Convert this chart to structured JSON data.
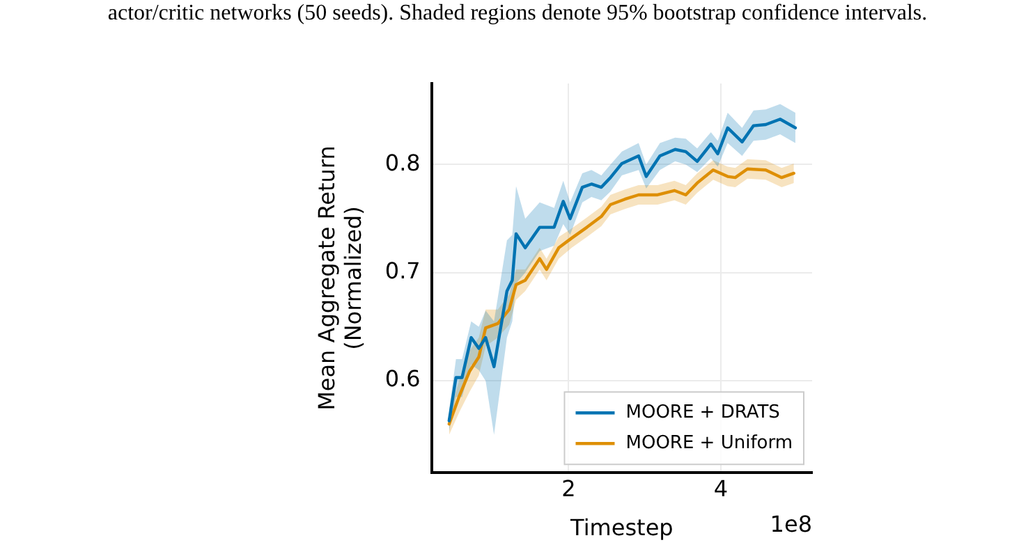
{
  "chart_data": {
    "type": "line",
    "xlabel": "Timestep",
    "ylabel": "Mean Aggregate Return\n(Normalized)",
    "annotations": [
      "actor/critic networks (50 seeds). Shaded regions denote 95% bootstrap confidence intervals.",
      "1e8"
    ],
    "xlim": [
      0.2,
      5.2
    ],
    "ylim": [
      0.515,
      0.875
    ],
    "xticks": [
      2,
      4
    ],
    "yticks": [
      0.6,
      0.7,
      0.8
    ],
    "grid": true,
    "legend": "bottom right",
    "marker": "none",
    "line_style": "solid",
    "series": [
      {
        "name": "MOORE + DRATS",
        "color": "#0173b2",
        "x": [
          0.43,
          0.52,
          0.6,
          0.72,
          0.82,
          0.91,
          1.02,
          1.19,
          1.26,
          1.31,
          1.43,
          1.62,
          1.81,
          1.93,
          2.02,
          2.18,
          2.3,
          2.43,
          2.55,
          2.7,
          2.92,
          3.02,
          3.2,
          3.4,
          3.54,
          3.69,
          3.87,
          3.96,
          4.09,
          4.28,
          4.43,
          4.59,
          4.78,
          4.98
        ],
        "values": [
          0.563,
          0.603,
          0.603,
          0.64,
          0.63,
          0.64,
          0.613,
          0.683,
          0.693,
          0.736,
          0.723,
          0.742,
          0.742,
          0.766,
          0.75,
          0.779,
          0.782,
          0.779,
          0.788,
          0.801,
          0.808,
          0.789,
          0.808,
          0.814,
          0.812,
          0.803,
          0.819,
          0.81,
          0.834,
          0.821,
          0.836,
          0.837,
          0.842,
          0.834
        ],
        "lower": [
          0.553,
          0.585,
          0.585,
          0.615,
          0.61,
          0.6,
          0.55,
          0.64,
          0.655,
          0.69,
          0.7,
          0.72,
          0.725,
          0.745,
          0.735,
          0.765,
          0.77,
          0.767,
          0.775,
          0.79,
          0.795,
          0.778,
          0.795,
          0.803,
          0.8,
          0.793,
          0.806,
          0.798,
          0.82,
          0.808,
          0.822,
          0.823,
          0.828,
          0.82
        ],
        "upper": [
          0.573,
          0.62,
          0.62,
          0.655,
          0.65,
          0.665,
          0.655,
          0.73,
          0.735,
          0.78,
          0.75,
          0.765,
          0.76,
          0.785,
          0.765,
          0.792,
          0.795,
          0.79,
          0.8,
          0.812,
          0.82,
          0.8,
          0.82,
          0.825,
          0.824,
          0.815,
          0.83,
          0.822,
          0.848,
          0.834,
          0.85,
          0.851,
          0.856,
          0.848
        ]
      },
      {
        "name": "MOORE + Uniform",
        "color": "#de8f05",
        "x": [
          0.43,
          0.57,
          0.7,
          0.82,
          0.91,
          1.07,
          1.22,
          1.31,
          1.43,
          1.62,
          1.71,
          1.87,
          2.04,
          2.24,
          2.43,
          2.55,
          2.74,
          2.92,
          3.17,
          3.39,
          3.54,
          3.69,
          3.9,
          4.09,
          4.19,
          4.35,
          4.59,
          4.8,
          4.96
        ],
        "values": [
          0.56,
          0.587,
          0.609,
          0.622,
          0.649,
          0.653,
          0.666,
          0.689,
          0.693,
          0.713,
          0.703,
          0.723,
          0.732,
          0.742,
          0.752,
          0.763,
          0.768,
          0.772,
          0.772,
          0.776,
          0.772,
          0.783,
          0.795,
          0.789,
          0.788,
          0.796,
          0.795,
          0.788,
          0.792
        ],
        "lower": [
          0.55,
          0.572,
          0.59,
          0.605,
          0.632,
          0.64,
          0.652,
          0.675,
          0.683,
          0.703,
          0.693,
          0.713,
          0.723,
          0.733,
          0.743,
          0.754,
          0.759,
          0.763,
          0.763,
          0.767,
          0.763,
          0.774,
          0.786,
          0.78,
          0.779,
          0.787,
          0.786,
          0.779,
          0.783
        ],
        "upper": [
          0.57,
          0.602,
          0.628,
          0.64,
          0.666,
          0.666,
          0.68,
          0.703,
          0.703,
          0.723,
          0.713,
          0.733,
          0.741,
          0.751,
          0.761,
          0.772,
          0.777,
          0.781,
          0.781,
          0.785,
          0.781,
          0.792,
          0.804,
          0.798,
          0.797,
          0.805,
          0.804,
          0.797,
          0.801
        ]
      }
    ]
  }
}
